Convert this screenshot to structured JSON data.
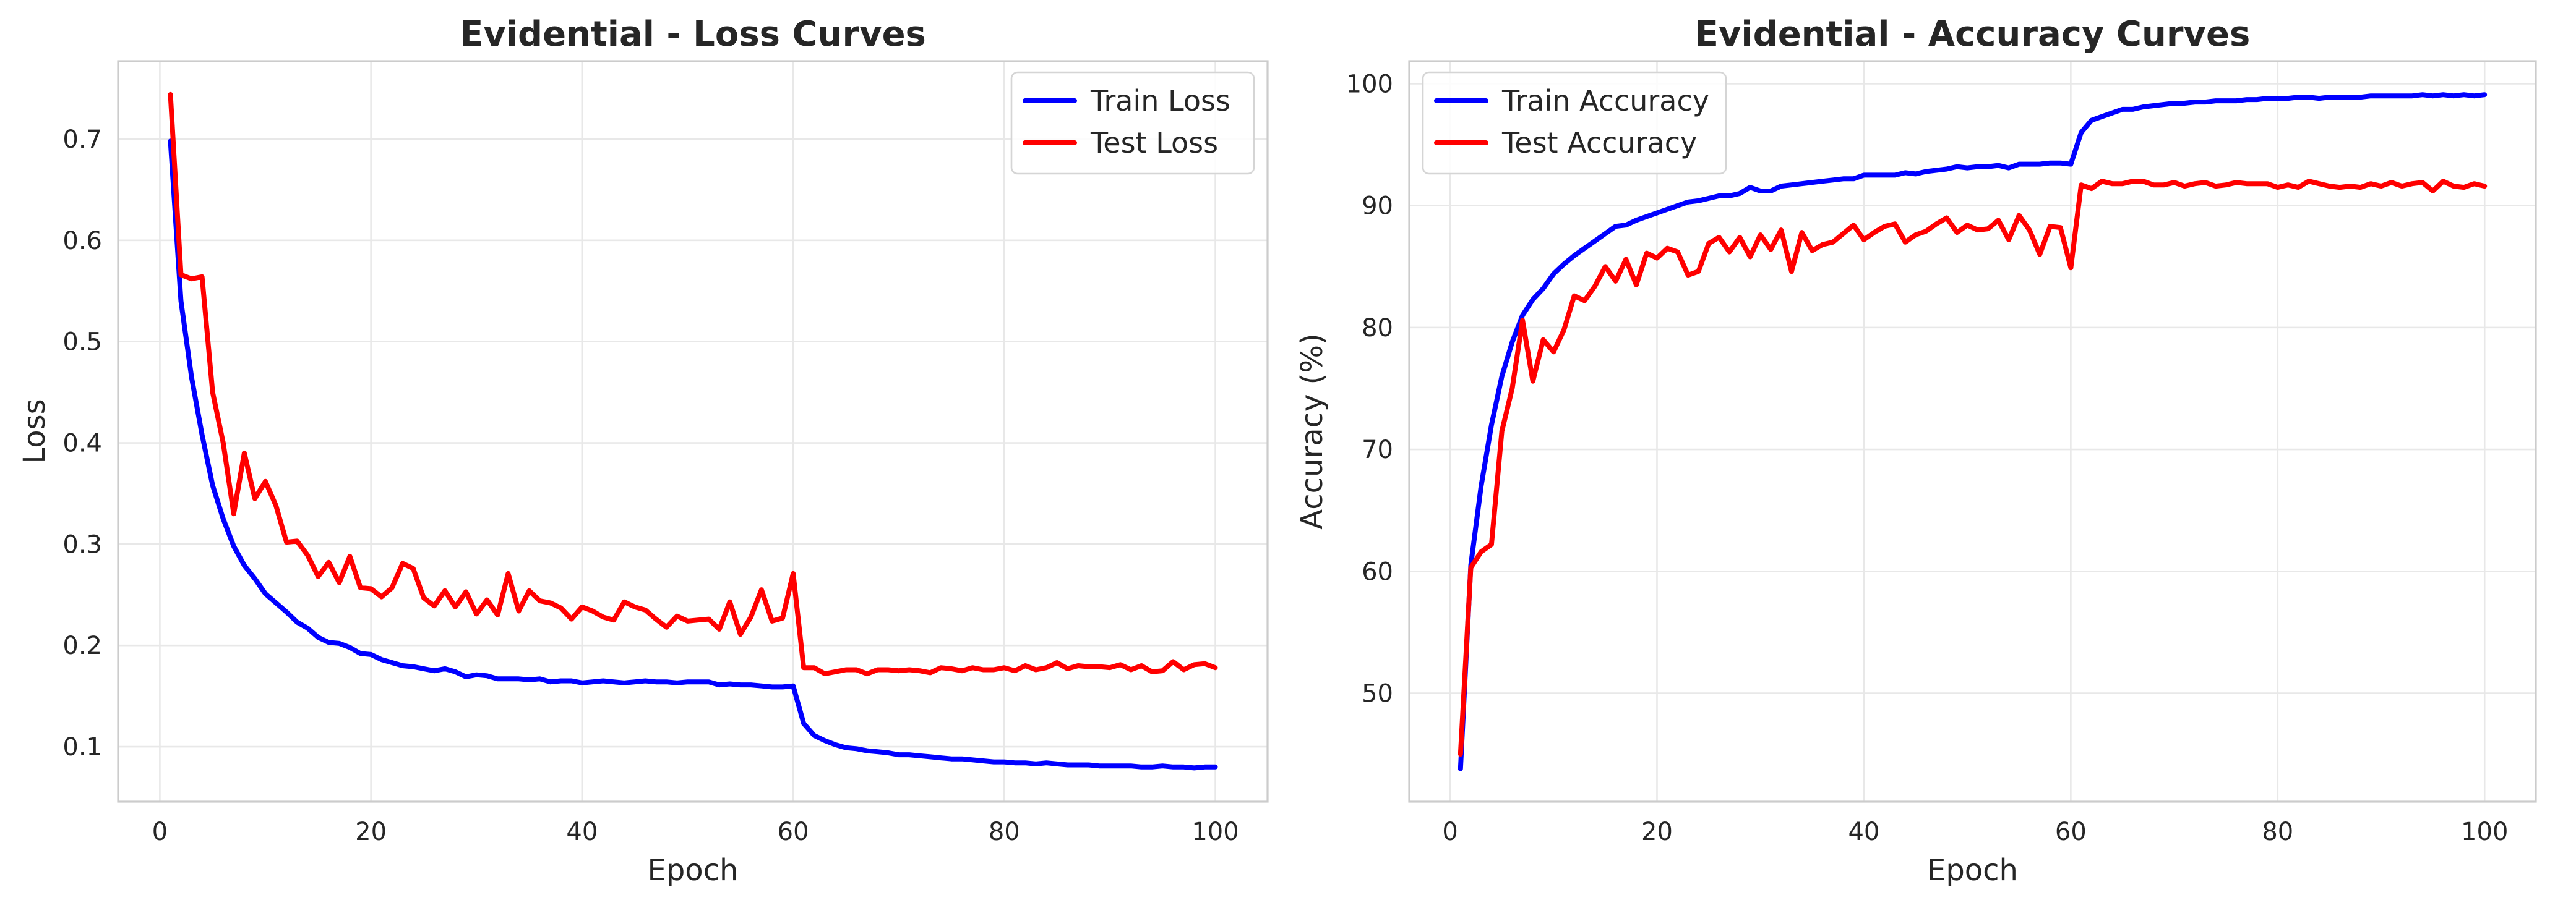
{
  "colors": {
    "train": "#0000ff",
    "test": "#ff0000"
  },
  "chart_data": [
    {
      "type": "line",
      "title": "Evidential - Loss Curves",
      "xlabel": "Epoch",
      "ylabel": "Loss",
      "xlim": [
        -3.95,
        104.95
      ],
      "ylim": [
        0.0457,
        0.7769
      ],
      "xticks": [
        0,
        20,
        40,
        60,
        80,
        100
      ],
      "yticks": [
        0.1,
        0.2,
        0.3,
        0.4,
        0.5,
        0.6,
        0.7
      ],
      "ytick_decimals": 1,
      "grid": true,
      "legend_placement": "top-right",
      "series": [
        {
          "name": "Train Loss",
          "color_key": "train",
          "x": [
            1,
            2,
            3,
            4,
            5,
            6,
            7,
            8,
            9,
            10,
            11,
            12,
            13,
            14,
            15,
            16,
            17,
            18,
            19,
            20,
            21,
            22,
            23,
            24,
            25,
            26,
            27,
            28,
            29,
            30,
            31,
            32,
            33,
            34,
            35,
            36,
            37,
            38,
            39,
            40,
            41,
            42,
            43,
            44,
            45,
            46,
            47,
            48,
            49,
            50,
            51,
            52,
            53,
            54,
            55,
            56,
            57,
            58,
            59,
            60,
            61,
            62,
            63,
            64,
            65,
            66,
            67,
            68,
            69,
            70,
            71,
            72,
            73,
            74,
            75,
            76,
            77,
            78,
            79,
            80,
            81,
            82,
            83,
            84,
            85,
            86,
            87,
            88,
            89,
            90,
            91,
            92,
            93,
            94,
            95,
            96,
            97,
            98,
            99,
            100
          ],
          "y": [
            0.698,
            0.54,
            0.465,
            0.408,
            0.358,
            0.325,
            0.298,
            0.279,
            0.266,
            0.251,
            0.242,
            0.233,
            0.223,
            0.217,
            0.208,
            0.203,
            0.202,
            0.198,
            0.192,
            0.191,
            0.186,
            0.183,
            0.18,
            0.179,
            0.177,
            0.175,
            0.177,
            0.174,
            0.169,
            0.171,
            0.17,
            0.167,
            0.167,
            0.167,
            0.166,
            0.167,
            0.164,
            0.165,
            0.165,
            0.163,
            0.164,
            0.165,
            0.164,
            0.163,
            0.164,
            0.165,
            0.164,
            0.164,
            0.163,
            0.164,
            0.164,
            0.164,
            0.161,
            0.162,
            0.161,
            0.161,
            0.16,
            0.159,
            0.159,
            0.16,
            0.123,
            0.111,
            0.106,
            0.102,
            0.099,
            0.098,
            0.096,
            0.095,
            0.094,
            0.092,
            0.092,
            0.091,
            0.09,
            0.089,
            0.088,
            0.088,
            0.087,
            0.086,
            0.085,
            0.085,
            0.084,
            0.084,
            0.083,
            0.084,
            0.083,
            0.082,
            0.082,
            0.082,
            0.081,
            0.081,
            0.081,
            0.081,
            0.08,
            0.08,
            0.081,
            0.08,
            0.08,
            0.079,
            0.08,
            0.08
          ]
        },
        {
          "name": "Test Loss",
          "color_key": "test",
          "x": [
            1,
            2,
            3,
            4,
            5,
            6,
            7,
            8,
            9,
            10,
            11,
            12,
            13,
            14,
            15,
            16,
            17,
            18,
            19,
            20,
            21,
            22,
            23,
            24,
            25,
            26,
            27,
            28,
            29,
            30,
            31,
            32,
            33,
            34,
            35,
            36,
            37,
            38,
            39,
            40,
            41,
            42,
            43,
            44,
            45,
            46,
            47,
            48,
            49,
            50,
            51,
            52,
            53,
            54,
            55,
            56,
            57,
            58,
            59,
            60,
            61,
            62,
            63,
            64,
            65,
            66,
            67,
            68,
            69,
            70,
            71,
            72,
            73,
            74,
            75,
            76,
            77,
            78,
            79,
            80,
            81,
            82,
            83,
            84,
            85,
            86,
            87,
            88,
            89,
            90,
            91,
            92,
            93,
            94,
            95,
            96,
            97,
            98,
            99,
            100
          ],
          "y": [
            0.744,
            0.566,
            0.562,
            0.564,
            0.45,
            0.4,
            0.33,
            0.39,
            0.345,
            0.362,
            0.338,
            0.302,
            0.303,
            0.289,
            0.268,
            0.282,
            0.262,
            0.288,
            0.257,
            0.256,
            0.248,
            0.257,
            0.281,
            0.276,
            0.247,
            0.239,
            0.254,
            0.238,
            0.253,
            0.231,
            0.245,
            0.23,
            0.271,
            0.234,
            0.254,
            0.244,
            0.242,
            0.237,
            0.226,
            0.238,
            0.234,
            0.228,
            0.225,
            0.243,
            0.238,
            0.235,
            0.226,
            0.218,
            0.229,
            0.224,
            0.225,
            0.226,
            0.216,
            0.243,
            0.211,
            0.228,
            0.255,
            0.224,
            0.227,
            0.271,
            0.178,
            0.178,
            0.172,
            0.174,
            0.176,
            0.176,
            0.172,
            0.176,
            0.176,
            0.175,
            0.176,
            0.175,
            0.173,
            0.178,
            0.177,
            0.175,
            0.178,
            0.176,
            0.176,
            0.178,
            0.175,
            0.18,
            0.176,
            0.178,
            0.183,
            0.177,
            0.18,
            0.179,
            0.179,
            0.178,
            0.181,
            0.176,
            0.18,
            0.174,
            0.175,
            0.184,
            0.176,
            0.181,
            0.182,
            0.178
          ]
        }
      ]
    },
    {
      "type": "line",
      "title": "Evidential - Accuracy Curves",
      "xlabel": "Epoch",
      "ylabel": "Accuracy (%)",
      "xlim": [
        -3.95,
        104.95
      ],
      "ylim": [
        41.1,
        101.85
      ],
      "xticks": [
        0,
        20,
        40,
        60,
        80,
        100
      ],
      "yticks": [
        50,
        60,
        70,
        80,
        90,
        100
      ],
      "ytick_decimals": 0,
      "grid": true,
      "legend_placement": "top-left",
      "series": [
        {
          "name": "Train Accuracy",
          "color_key": "train",
          "x": [
            1,
            2,
            3,
            4,
            5,
            6,
            7,
            8,
            9,
            10,
            11,
            12,
            13,
            14,
            15,
            16,
            17,
            18,
            19,
            20,
            21,
            22,
            23,
            24,
            25,
            26,
            27,
            28,
            29,
            30,
            31,
            32,
            33,
            34,
            35,
            36,
            37,
            38,
            39,
            40,
            41,
            42,
            43,
            44,
            45,
            46,
            47,
            48,
            49,
            50,
            51,
            52,
            53,
            54,
            55,
            56,
            57,
            58,
            59,
            60,
            61,
            62,
            63,
            64,
            65,
            66,
            67,
            68,
            69,
            70,
            71,
            72,
            73,
            74,
            75,
            76,
            77,
            78,
            79,
            80,
            81,
            82,
            83,
            84,
            85,
            86,
            87,
            88,
            89,
            90,
            91,
            92,
            93,
            94,
            95,
            96,
            97,
            98,
            99,
            100
          ],
          "y": [
            43.8,
            60.5,
            67.0,
            72.0,
            76.0,
            78.8,
            81.0,
            82.3,
            83.2,
            84.4,
            85.2,
            85.9,
            86.5,
            87.1,
            87.7,
            88.3,
            88.4,
            88.8,
            89.1,
            89.4,
            89.7,
            90.0,
            90.3,
            90.4,
            90.6,
            90.8,
            90.8,
            91.0,
            91.5,
            91.2,
            91.2,
            91.6,
            91.7,
            91.8,
            91.9,
            92.0,
            92.1,
            92.2,
            92.2,
            92.5,
            92.5,
            92.5,
            92.5,
            92.7,
            92.6,
            92.8,
            92.9,
            93.0,
            93.2,
            93.1,
            93.2,
            93.2,
            93.3,
            93.1,
            93.4,
            93.4,
            93.4,
            93.5,
            93.5,
            93.4,
            96.0,
            97.0,
            97.3,
            97.6,
            97.9,
            97.9,
            98.1,
            98.2,
            98.3,
            98.4,
            98.4,
            98.5,
            98.5,
            98.6,
            98.6,
            98.6,
            98.7,
            98.7,
            98.8,
            98.8,
            98.8,
            98.9,
            98.9,
            98.8,
            98.9,
            98.9,
            98.9,
            98.9,
            99.0,
            99.0,
            99.0,
            99.0,
            99.0,
            99.1,
            99.0,
            99.1,
            99.0,
            99.1,
            99.0,
            99.1
          ]
        },
        {
          "name": "Test Accuracy",
          "color_key": "test",
          "x": [
            1,
            2,
            3,
            4,
            5,
            6,
            7,
            8,
            9,
            10,
            11,
            12,
            13,
            14,
            15,
            16,
            17,
            18,
            19,
            20,
            21,
            22,
            23,
            24,
            25,
            26,
            27,
            28,
            29,
            30,
            31,
            32,
            33,
            34,
            35,
            36,
            37,
            38,
            39,
            40,
            41,
            42,
            43,
            44,
            45,
            46,
            47,
            48,
            49,
            50,
            51,
            52,
            53,
            54,
            55,
            56,
            57,
            58,
            59,
            60,
            61,
            62,
            63,
            64,
            65,
            66,
            67,
            68,
            69,
            70,
            71,
            72,
            73,
            74,
            75,
            76,
            77,
            78,
            79,
            80,
            81,
            82,
            83,
            84,
            85,
            86,
            87,
            88,
            89,
            90,
            91,
            92,
            93,
            94,
            95,
            96,
            97,
            98,
            99,
            100
          ],
          "y": [
            45.0,
            60.3,
            61.6,
            62.2,
            71.5,
            75.0,
            80.6,
            75.6,
            79.0,
            78.0,
            79.8,
            82.6,
            82.2,
            83.4,
            85.0,
            83.8,
            85.6,
            83.5,
            86.1,
            85.7,
            86.5,
            86.2,
            84.3,
            84.6,
            86.9,
            87.4,
            86.2,
            87.4,
            85.8,
            87.6,
            86.4,
            88.0,
            84.6,
            87.8,
            86.3,
            86.8,
            87.0,
            87.7,
            88.4,
            87.2,
            87.8,
            88.3,
            88.5,
            87.0,
            87.6,
            87.9,
            88.5,
            89.0,
            87.8,
            88.4,
            88.0,
            88.1,
            88.8,
            87.2,
            89.2,
            88.0,
            86.0,
            88.3,
            88.2,
            84.9,
            91.7,
            91.4,
            92.0,
            91.8,
            91.8,
            92.0,
            92.0,
            91.7,
            91.7,
            91.9,
            91.6,
            91.8,
            91.9,
            91.6,
            91.7,
            91.9,
            91.8,
            91.8,
            91.8,
            91.5,
            91.7,
            91.5,
            92.0,
            91.8,
            91.6,
            91.5,
            91.6,
            91.5,
            91.8,
            91.6,
            91.9,
            91.6,
            91.8,
            91.9,
            91.2,
            92.0,
            91.6,
            91.5,
            91.8,
            91.6
          ]
        }
      ]
    }
  ]
}
